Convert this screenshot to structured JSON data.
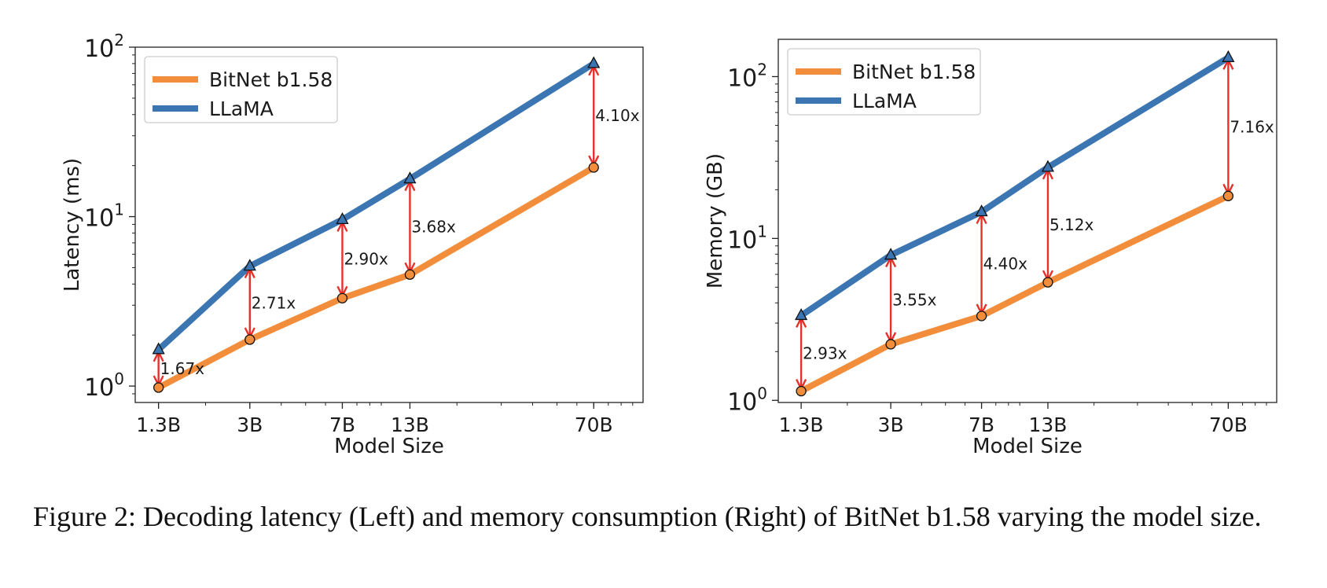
{
  "chart_data": [
    {
      "type": "line",
      "position": "left",
      "xlabel": "Model Size",
      "ylabel": "Latency (ms)",
      "yscale": "log",
      "ylim": [
        0.8,
        100
      ],
      "categories": [
        "1.3B",
        "3B",
        "7B",
        "13B",
        "70B"
      ],
      "x": [
        1.3,
        3,
        7,
        13,
        70
      ],
      "xlim": [
        1.05,
        110
      ],
      "yticks": [
        {
          "value": 1,
          "base": "10",
          "exp": "0"
        },
        {
          "value": 10,
          "base": "10",
          "exp": "1"
        },
        {
          "value": 100,
          "base": "10",
          "exp": "2"
        }
      ],
      "series": [
        {
          "name": "BitNet b1.58",
          "color": "#f28e3b",
          "marker": "circle",
          "values": [
            0.98,
            1.88,
            3.3,
            4.55,
            19.5
          ]
        },
        {
          "name": "LLaMA",
          "color": "#3b75b2",
          "marker": "triangle",
          "values": [
            1.64,
            5.1,
            9.6,
            16.7,
            80.0
          ]
        }
      ],
      "ratios": [
        "1.67x",
        "2.71x",
        "2.90x",
        "3.68x",
        "4.10x"
      ],
      "legend": "top-left",
      "grid": false
    },
    {
      "type": "line",
      "position": "right",
      "xlabel": "Model Size",
      "ylabel": "Memory (GB)",
      "yscale": "log",
      "ylim": [
        0.97,
        170
      ],
      "categories": [
        "1.3B",
        "3B",
        "7B",
        "13B",
        "70B"
      ],
      "x": [
        1.3,
        3,
        7,
        13,
        70
      ],
      "xlim": [
        1.05,
        110
      ],
      "yticks": [
        {
          "value": 1,
          "base": "10",
          "exp": "0"
        },
        {
          "value": 10,
          "base": "10",
          "exp": "1"
        },
        {
          "value": 100,
          "base": "10",
          "exp": "2"
        }
      ],
      "series": [
        {
          "name": "BitNet b1.58",
          "color": "#f28e3b",
          "marker": "circle",
          "values": [
            1.14,
            2.22,
            3.32,
            5.36,
            18.3
          ]
        },
        {
          "name": "LLaMA",
          "color": "#3b75b2",
          "marker": "triangle",
          "values": [
            3.34,
            7.89,
            14.6,
            27.5,
            131.0
          ]
        }
      ],
      "ratios": [
        "2.93x",
        "3.55x",
        "4.40x",
        "5.12x",
        "7.16x"
      ],
      "legend": "top-left",
      "grid": false
    }
  ],
  "annotation_color": "#e8302a",
  "caption": "Figure 2: Decoding latency (Left) and memory consumption (Right) of BitNet b1.58 varying the model size."
}
